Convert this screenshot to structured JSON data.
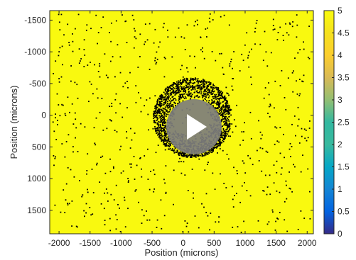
{
  "chart_data": {
    "type": "heatmap",
    "title": "",
    "xlabel": "Position (microns)",
    "ylabel": "Position (microns)",
    "xlim": [
      -2150,
      2100
    ],
    "ylim": [
      1870,
      -1650
    ],
    "y_reversed": true,
    "x_ticks": [
      -2000,
      -1500,
      -1000,
      -500,
      0,
      500,
      1000,
      1500,
      2000
    ],
    "y_ticks": [
      -1500,
      -1000,
      -500,
      0,
      500,
      1000,
      1500
    ],
    "x_tick_labels": [
      "-2000",
      "-1500",
      "-1000",
      "-500",
      "0",
      "500",
      "1000",
      "1500",
      "2000"
    ],
    "y_tick_labels": [
      "-1500",
      "-1000",
      "-500",
      "0",
      "500",
      "1000",
      "1500"
    ],
    "background_value": 5,
    "colorbar": {
      "min": 0,
      "max": 5,
      "colormap": "parula",
      "ticks": [
        0,
        0.5,
        1,
        1.5,
        2,
        2.5,
        3,
        3.5,
        4,
        4.5,
        5
      ],
      "tick_labels": [
        "0",
        "0.5",
        "1",
        "1.5",
        "2",
        "2.5",
        "3",
        "3.5",
        "4",
        "4.5",
        "5"
      ]
    },
    "scatter": {
      "marker_color": "#000000",
      "ring_center": [
        150,
        40
      ],
      "ring_inner_radius": 280,
      "ring_outer_radius": 630,
      "ring_point_count": 1700,
      "sparse_point_count": 650,
      "x_range": [
        -2100,
        2050
      ],
      "y_range": [
        -1600,
        1850
      ]
    },
    "grid": false
  },
  "colors": {
    "field": "#f9f90f",
    "points": "#000000",
    "axis": "#262626",
    "play_button": "#7d7d7d"
  },
  "overlay": {
    "icon": "play-icon"
  }
}
